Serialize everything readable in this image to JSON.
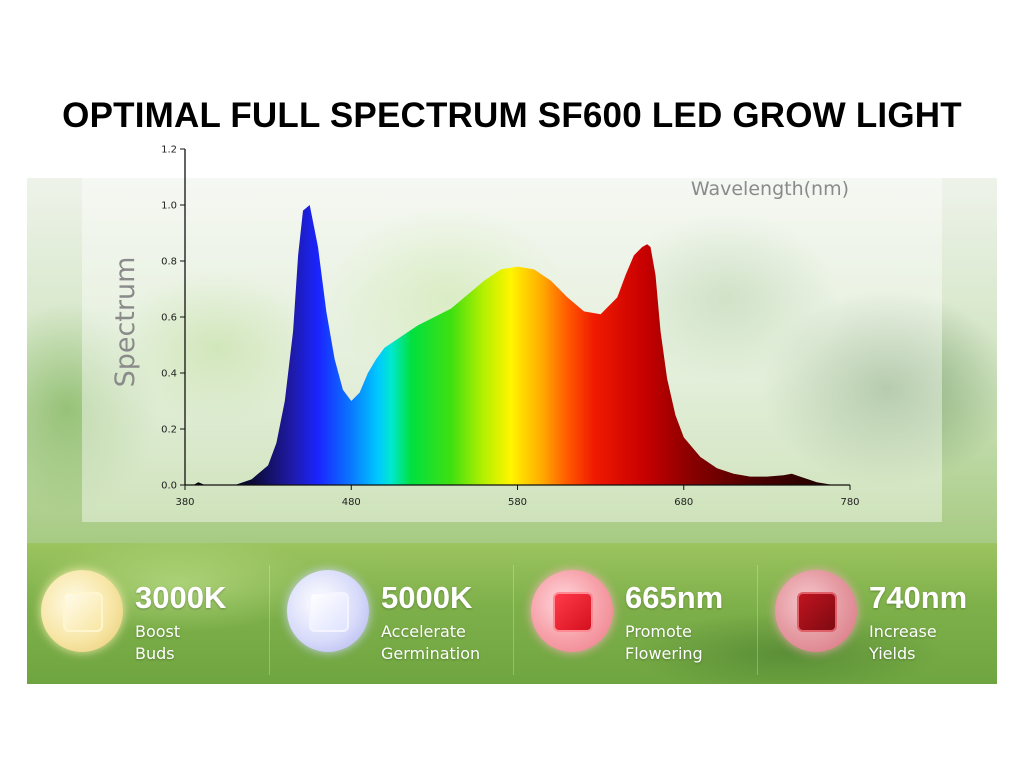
{
  "title": "OPTIMAL FULL SPECTRUM SF600 LED GROW LIGHT",
  "chart_data": {
    "type": "area",
    "title": "",
    "xlabel": "Wavelength(nm)",
    "ylabel": "Spectrum",
    "xlim": [
      380,
      780
    ],
    "ylim": [
      0,
      1.2
    ],
    "x_ticks": [
      "380",
      "480",
      "580",
      "680",
      "780"
    ],
    "y_ticks": [
      "0.0",
      "0.2",
      "0.4",
      "0.6",
      "0.8",
      "1.0",
      "1.2"
    ],
    "grid": false,
    "fill": "wavelength-colored spectrum gradient",
    "series": [
      {
        "x": [
          380,
          385,
          388,
          392,
          400,
          410,
          420,
          430,
          435,
          440,
          445,
          448,
          451,
          455,
          460,
          465,
          470,
          475,
          480,
          485,
          490,
          495,
          500,
          510,
          520,
          530,
          540,
          550,
          560,
          570,
          580,
          590,
          600,
          610,
          620,
          630,
          640,
          645,
          650,
          655,
          658,
          660,
          663,
          666,
          670,
          675,
          680,
          690,
          700,
          710,
          720,
          730,
          740,
          745,
          750,
          755,
          760,
          770,
          780
        ],
        "y": [
          0.0,
          0.0,
          0.01,
          0.0,
          0.0,
          0.0,
          0.02,
          0.07,
          0.15,
          0.3,
          0.55,
          0.82,
          0.98,
          1.0,
          0.85,
          0.62,
          0.45,
          0.34,
          0.3,
          0.33,
          0.4,
          0.45,
          0.49,
          0.53,
          0.57,
          0.6,
          0.63,
          0.68,
          0.73,
          0.77,
          0.78,
          0.77,
          0.73,
          0.67,
          0.62,
          0.61,
          0.67,
          0.75,
          0.82,
          0.85,
          0.86,
          0.85,
          0.75,
          0.55,
          0.38,
          0.25,
          0.17,
          0.1,
          0.06,
          0.04,
          0.03,
          0.03,
          0.035,
          0.04,
          0.03,
          0.02,
          0.01,
          0.0,
          0.0
        ]
      }
    ]
  },
  "badges": [
    {
      "value": "3000K",
      "desc": "Boost\nBuds",
      "color": "#f5e3a0"
    },
    {
      "value": "5000K",
      "desc": "Accelerate\nGermination",
      "color": "#cfd3f7"
    },
    {
      "value": "665nm",
      "desc": "Promote\nFlowering",
      "color": "#e8192c"
    },
    {
      "value": "740nm",
      "desc": "Increase\nYields",
      "color": "#a3101c"
    }
  ]
}
